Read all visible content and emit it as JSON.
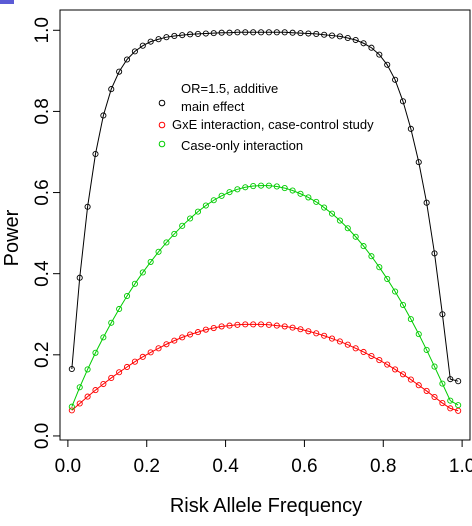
{
  "chart_data": {
    "type": "line",
    "xlabel": "Risk Allele Frequency",
    "ylabel": "Power",
    "xlim": [
      -0.02,
      1.02
    ],
    "ylim": [
      -0.01,
      1.05
    ],
    "xticks": [
      "0.0",
      "0.2",
      "0.4",
      "0.6",
      "0.8",
      "1.0"
    ],
    "yticks": [
      "0.0",
      "0.2",
      "0.4",
      "0.6",
      "0.8",
      "1.0"
    ],
    "grid": false,
    "legend_position": "top-center",
    "legend": {
      "line1": "OR=1.5, additive",
      "line2": "main effect",
      "line3": "GxE interaction, case-control study",
      "line4": "Case-only interaction"
    },
    "series": [
      {
        "name": "OR=1.5, additive main effect",
        "color": "#000000",
        "marker": "open-circle",
        "x": [
          0.01,
          0.03,
          0.05,
          0.07,
          0.09,
          0.11,
          0.13,
          0.15,
          0.17,
          0.19,
          0.21,
          0.23,
          0.25,
          0.27,
          0.29,
          0.31,
          0.33,
          0.35,
          0.37,
          0.39,
          0.41,
          0.43,
          0.45,
          0.47,
          0.49,
          0.51,
          0.53,
          0.55,
          0.57,
          0.59,
          0.61,
          0.63,
          0.65,
          0.67,
          0.69,
          0.71,
          0.73,
          0.75,
          0.77,
          0.79,
          0.81,
          0.83,
          0.85,
          0.87,
          0.89,
          0.91,
          0.93,
          0.95,
          0.97,
          0.99
        ],
        "y": [
          0.165,
          0.39,
          0.565,
          0.695,
          0.79,
          0.855,
          0.898,
          0.928,
          0.948,
          0.962,
          0.972,
          0.978,
          0.983,
          0.986,
          0.988,
          0.99,
          0.991,
          0.992,
          0.993,
          0.994,
          0.994,
          0.995,
          0.995,
          0.995,
          0.995,
          0.995,
          0.995,
          0.995,
          0.994,
          0.993,
          0.992,
          0.991,
          0.989,
          0.987,
          0.985,
          0.981,
          0.976,
          0.968,
          0.957,
          0.94,
          0.915,
          0.878,
          0.825,
          0.757,
          0.675,
          0.575,
          0.45,
          0.3,
          0.14,
          0.135
        ]
      },
      {
        "name": "GxE interaction, case-control study",
        "color": "#ff0000",
        "marker": "open-circle",
        "x": [
          0.01,
          0.03,
          0.05,
          0.07,
          0.09,
          0.11,
          0.13,
          0.15,
          0.17,
          0.19,
          0.21,
          0.23,
          0.25,
          0.27,
          0.29,
          0.31,
          0.33,
          0.35,
          0.37,
          0.39,
          0.41,
          0.43,
          0.45,
          0.47,
          0.49,
          0.51,
          0.53,
          0.55,
          0.57,
          0.59,
          0.61,
          0.63,
          0.65,
          0.67,
          0.69,
          0.71,
          0.73,
          0.75,
          0.77,
          0.79,
          0.81,
          0.83,
          0.85,
          0.87,
          0.89,
          0.91,
          0.93,
          0.95,
          0.97,
          0.99
        ],
        "y": [
          0.063,
          0.08,
          0.097,
          0.113,
          0.128,
          0.143,
          0.157,
          0.17,
          0.183,
          0.195,
          0.206,
          0.216,
          0.226,
          0.235,
          0.243,
          0.25,
          0.256,
          0.262,
          0.266,
          0.27,
          0.272,
          0.274,
          0.275,
          0.275,
          0.275,
          0.274,
          0.272,
          0.27,
          0.267,
          0.263,
          0.258,
          0.253,
          0.247,
          0.24,
          0.233,
          0.225,
          0.216,
          0.207,
          0.197,
          0.187,
          0.176,
          0.164,
          0.152,
          0.139,
          0.125,
          0.111,
          0.096,
          0.081,
          0.068,
          0.062
        ]
      },
      {
        "name": "Case-only interaction",
        "color": "#00cc00",
        "marker": "open-circle",
        "x": [
          0.01,
          0.03,
          0.05,
          0.07,
          0.09,
          0.11,
          0.13,
          0.15,
          0.17,
          0.19,
          0.21,
          0.23,
          0.25,
          0.27,
          0.29,
          0.31,
          0.33,
          0.35,
          0.37,
          0.39,
          0.41,
          0.43,
          0.45,
          0.47,
          0.49,
          0.51,
          0.53,
          0.55,
          0.57,
          0.59,
          0.61,
          0.63,
          0.65,
          0.67,
          0.69,
          0.71,
          0.73,
          0.75,
          0.77,
          0.79,
          0.81,
          0.83,
          0.85,
          0.87,
          0.89,
          0.91,
          0.93,
          0.95,
          0.97,
          0.99
        ],
        "y": [
          0.072,
          0.12,
          0.164,
          0.205,
          0.243,
          0.279,
          0.313,
          0.345,
          0.375,
          0.403,
          0.429,
          0.454,
          0.477,
          0.498,
          0.518,
          0.536,
          0.553,
          0.568,
          0.581,
          0.592,
          0.601,
          0.608,
          0.613,
          0.616,
          0.617,
          0.617,
          0.615,
          0.611,
          0.605,
          0.597,
          0.588,
          0.577,
          0.563,
          0.548,
          0.531,
          0.512,
          0.491,
          0.468,
          0.443,
          0.416,
          0.387,
          0.356,
          0.323,
          0.288,
          0.251,
          0.212,
          0.171,
          0.129,
          0.087,
          0.076
        ]
      }
    ]
  }
}
